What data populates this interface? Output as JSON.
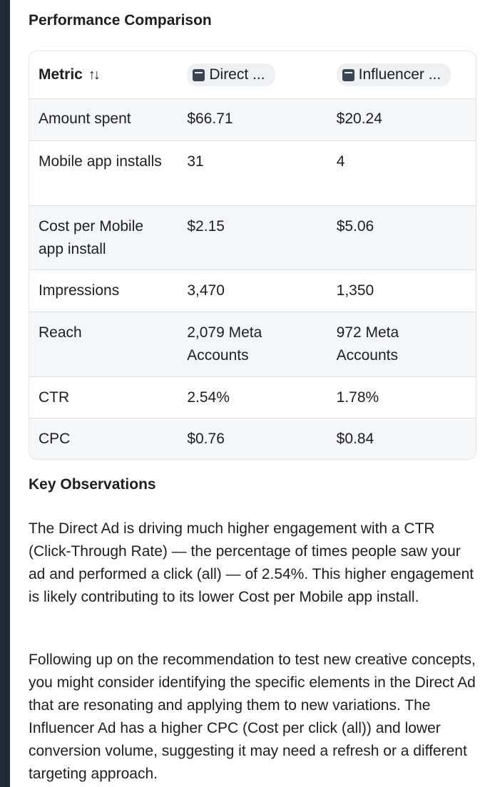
{
  "sections": {
    "comparison_title": "Performance Comparison",
    "observations_title": "Key Observations"
  },
  "table": {
    "headers": {
      "metric": "Metric",
      "col_a": "Direct ...",
      "col_b": "Influencer ..."
    },
    "rows": [
      {
        "metric": "Amount spent",
        "a": "$66.71",
        "b": "$20.24"
      },
      {
        "metric": "Mobile app installs",
        "a": "31",
        "b": "4"
      },
      {
        "metric": "Cost per Mobile app install",
        "a": "$2.15",
        "b": "$5.06"
      },
      {
        "metric": "Impressions",
        "a": "3,470",
        "b": "1,350"
      },
      {
        "metric": "Reach",
        "a": "2,079 Meta Accounts",
        "b": "972 Meta Accounts"
      },
      {
        "metric": "CTR",
        "a": "2.54%",
        "b": "1.78%"
      },
      {
        "metric": "CPC",
        "a": "$0.76",
        "b": "$0.84"
      }
    ]
  },
  "paragraphs": [
    "The Direct Ad is driving much higher engagement with a CTR (Click-Through Rate) — the percentage of times people saw your ad and performed a click (all) — of 2.54%. This higher engagement is likely contributing to its lower Cost per Mobile app install.",
    "Following up on the recommendation to test new creative concepts, you might consider identifying the specific elements in the Direct Ad that are resonating and applying them to new variations. The Influencer Ad has a higher CPC (Cost per click (all)) and lower conversion volume, suggesting it may need a refresh or a different targeting approach."
  ],
  "icons": {
    "sort": "sort-icon",
    "campaign": "ad-set-icon"
  },
  "colors": {
    "left_bar": "#1f2a36",
    "row_shade": "#f5f6f7",
    "pill_bg": "#eef0f3"
  }
}
